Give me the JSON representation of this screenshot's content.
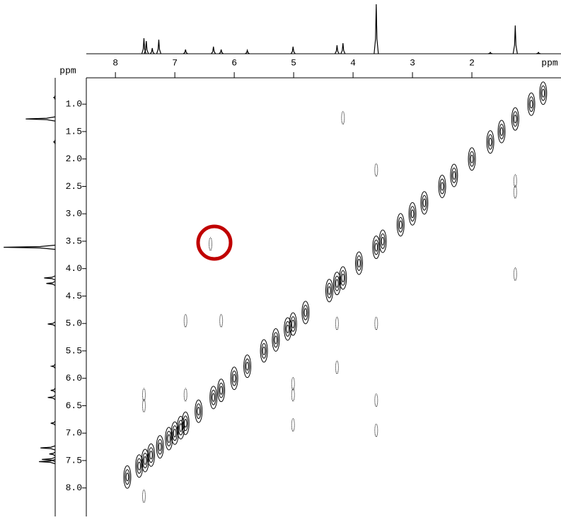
{
  "chart_data": {
    "type": "nmr2d",
    "x_label": "ppm",
    "y_label": "ppm",
    "xlim": [
      8.49,
      0.5
    ],
    "ylim": [
      0.52,
      8.52
    ],
    "xticks": [
      8,
      7,
      6,
      5,
      4,
      3,
      2
    ],
    "yticks": [
      {
        "value": 1,
        "label": "1.0"
      },
      1.5,
      {
        "value": 2,
        "label": "2.0"
      },
      2.5,
      {
        "value": 3,
        "label": "3.0"
      },
      3.5,
      {
        "value": 4,
        "label": "4.0"
      },
      4.5,
      {
        "value": 5,
        "label": "5.0"
      },
      5.5,
      {
        "value": 6,
        "label": "6.0"
      },
      6.5,
      {
        "value": 7,
        "label": "7.0"
      },
      7.5,
      {
        "value": 8,
        "label": "8.0"
      }
    ],
    "color": "#000000",
    "peaks": {
      "ppm": [
        7.52,
        7.48,
        7.38,
        7.27,
        6.82,
        6.35,
        6.22,
        5.78,
        5.01,
        4.27,
        4.17,
        3.61,
        1.69,
        1.27,
        0.88
      ],
      "intensity": [
        22,
        18,
        8,
        20,
        6,
        10,
        6,
        5,
        10,
        12,
        15,
        70,
        2,
        40,
        2
      ]
    },
    "diagonal": [
      7.8,
      7.6,
      7.5,
      7.4,
      7.25,
      7.1,
      7.0,
      6.9,
      6.82,
      6.6,
      6.35,
      6.22,
      6.0,
      5.78,
      5.5,
      5.3,
      5.1,
      5.01,
      4.8,
      4.4,
      4.27,
      4.17,
      3.9,
      3.61,
      3.5,
      3.2,
      3.0,
      2.8,
      2.5,
      2.3,
      2.0,
      1.69,
      1.5,
      1.27,
      1.0,
      0.8
    ],
    "cross_peaks": {
      "x": [
        6.4,
        4.17,
        1.27,
        1.27,
        6.82,
        6.22,
        7.52,
        7.52,
        4.27,
        5.01,
        5.01,
        3.61,
        3.61,
        3.61,
        4.27,
        1.27,
        6.82,
        5.01,
        3.61,
        7.52
      ],
      "y": [
        3.55,
        1.25,
        4.1,
        2.4,
        4.95,
        4.95,
        6.3,
        8.15,
        5.8,
        6.3,
        6.85,
        6.4,
        6.95,
        5.0,
        5.0,
        2.6,
        6.3,
        6.1,
        2.2,
        6.5
      ]
    }
  }
}
